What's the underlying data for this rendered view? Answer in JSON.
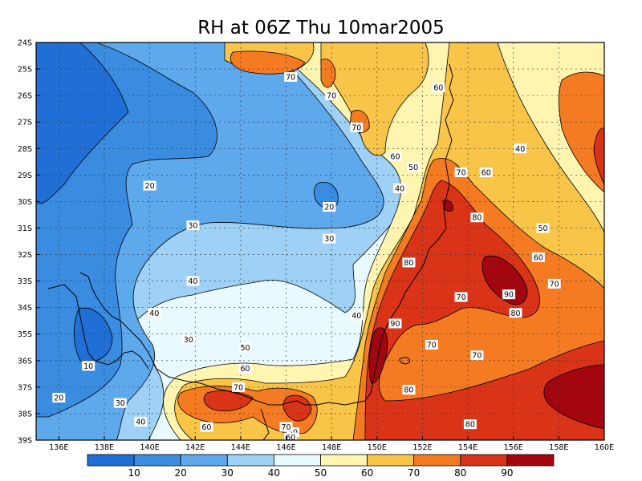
{
  "chart_data": {
    "type": "heatmap",
    "title": "RH at 06Z Thu 10mar2005",
    "xlabel": "",
    "ylabel": "",
    "xlim": [
      135,
      160
    ],
    "ylim": [
      -39,
      -24
    ],
    "x_ticks": [
      {
        "value": 136,
        "label": "136E"
      },
      {
        "value": 138,
        "label": "138E"
      },
      {
        "value": 140,
        "label": "140E"
      },
      {
        "value": 142,
        "label": "142E"
      },
      {
        "value": 144,
        "label": "144E"
      },
      {
        "value": 146,
        "label": "146E"
      },
      {
        "value": 148,
        "label": "148E"
      },
      {
        "value": 150,
        "label": "150E"
      },
      {
        "value": 152,
        "label": "152E"
      },
      {
        "value": 154,
        "label": "154E"
      },
      {
        "value": 156,
        "label": "156E"
      },
      {
        "value": 158,
        "label": "158E"
      },
      {
        "value": 160,
        "label": "160E"
      }
    ],
    "y_ticks": [
      {
        "value": -24,
        "label": "24S"
      },
      {
        "value": -25,
        "label": "25S"
      },
      {
        "value": -26,
        "label": "26S"
      },
      {
        "value": -27,
        "label": "27S"
      },
      {
        "value": -28,
        "label": "28S"
      },
      {
        "value": -29,
        "label": "29S"
      },
      {
        "value": -30,
        "label": "30S"
      },
      {
        "value": -31,
        "label": "31S"
      },
      {
        "value": -32,
        "label": "32S"
      },
      {
        "value": -33,
        "label": "33S"
      },
      {
        "value": -34,
        "label": "34S"
      },
      {
        "value": -35,
        "label": "35S"
      },
      {
        "value": -36,
        "label": "36S"
      },
      {
        "value": -37,
        "label": "37S"
      },
      {
        "value": -38,
        "label": "38S"
      },
      {
        "value": -39,
        "label": "39S"
      }
    ],
    "grid": true,
    "colorbar": {
      "colors": [
        "#1f6fd6",
        "#3a8ce0",
        "#5ea8ec",
        "#9fd0f5",
        "#e8faff",
        "#fff5b0",
        "#f8c548",
        "#f47b22",
        "#d93318",
        "#a3060f"
      ],
      "labels": [
        "10",
        "20",
        "30",
        "40",
        "50",
        "60",
        "70",
        "80",
        "90"
      ]
    },
    "contour_labels": [
      {
        "lon": 140.0,
        "lat": -29.4,
        "text": "20"
      },
      {
        "lon": 147.9,
        "lat": -30.2,
        "text": "20"
      },
      {
        "lon": 137.3,
        "lat": -36.2,
        "text": "10"
      },
      {
        "lon": 136.0,
        "lat": -37.4,
        "text": "20"
      },
      {
        "lon": 141.9,
        "lat": -30.9,
        "text": "30"
      },
      {
        "lon": 147.9,
        "lat": -31.4,
        "text": "30"
      },
      {
        "lon": 141.7,
        "lat": -35.2,
        "text": "30"
      },
      {
        "lon": 138.7,
        "lat": -37.6,
        "text": "30"
      },
      {
        "lon": 141.9,
        "lat": -33.0,
        "text": "40"
      },
      {
        "lon": 140.2,
        "lat": -34.2,
        "text": "40"
      },
      {
        "lon": 149.1,
        "lat": -34.3,
        "text": "40"
      },
      {
        "lon": 151.0,
        "lat": -29.5,
        "text": "40"
      },
      {
        "lon": 139.6,
        "lat": -38.3,
        "text": "40"
      },
      {
        "lon": 156.3,
        "lat": -28.0,
        "text": "40"
      },
      {
        "lon": 144.2,
        "lat": -35.5,
        "text": "50"
      },
      {
        "lon": 151.6,
        "lat": -28.7,
        "text": "50"
      },
      {
        "lon": 157.3,
        "lat": -31.0,
        "text": "50"
      },
      {
        "lon": 146.3,
        "lat": -38.7,
        "text": "50"
      },
      {
        "lon": 152.7,
        "lat": -25.7,
        "text": "60"
      },
      {
        "lon": 150.8,
        "lat": -28.3,
        "text": "60"
      },
      {
        "lon": 154.8,
        "lat": -28.9,
        "text": "60"
      },
      {
        "lon": 144.2,
        "lat": -36.3,
        "text": "60"
      },
      {
        "lon": 142.5,
        "lat": -38.5,
        "text": "60"
      },
      {
        "lon": 157.1,
        "lat": -32.1,
        "text": "60"
      },
      {
        "lon": 146.2,
        "lat": -38.9,
        "text": "60"
      },
      {
        "lon": 146.2,
        "lat": -25.3,
        "text": "70"
      },
      {
        "lon": 148.0,
        "lat": -26.0,
        "text": "70"
      },
      {
        "lon": 149.1,
        "lat": -27.2,
        "text": "70"
      },
      {
        "lon": 153.7,
        "lat": -28.9,
        "text": "70"
      },
      {
        "lon": 143.9,
        "lat": -37.0,
        "text": "70"
      },
      {
        "lon": 146.0,
        "lat": -38.5,
        "text": "70"
      },
      {
        "lon": 153.7,
        "lat": -33.6,
        "text": "70"
      },
      {
        "lon": 152.4,
        "lat": -35.4,
        "text": "70"
      },
      {
        "lon": 154.4,
        "lat": -35.8,
        "text": "70"
      },
      {
        "lon": 157.8,
        "lat": -33.1,
        "text": "70"
      },
      {
        "lon": 154.4,
        "lat": -30.6,
        "text": "80"
      },
      {
        "lon": 151.4,
        "lat": -32.3,
        "text": "80"
      },
      {
        "lon": 151.4,
        "lat": -37.1,
        "text": "80"
      },
      {
        "lon": 156.1,
        "lat": -34.2,
        "text": "80"
      },
      {
        "lon": 154.1,
        "lat": -38.4,
        "text": "80"
      },
      {
        "lon": 155.8,
        "lat": -33.5,
        "text": "90"
      },
      {
        "lon": 150.8,
        "lat": -34.6,
        "text": "90"
      }
    ]
  }
}
